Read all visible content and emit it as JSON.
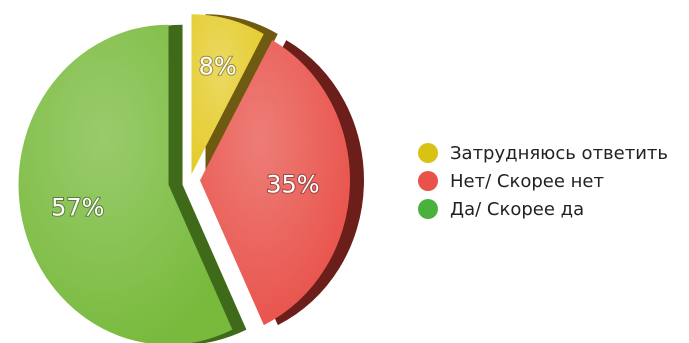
{
  "chart_data": {
    "type": "pie",
    "slices": [
      {
        "label": "Затрудняюсь ответить",
        "value": 8,
        "value_label": "8%",
        "color": "#e4cc2c",
        "side_color": "#6e5a10"
      },
      {
        "label": "Нет/ Скорее нет",
        "value": 35,
        "value_label": "35%",
        "color": "#e8524a",
        "side_color": "#6b1e1a"
      },
      {
        "label": "Да/ Скорее да",
        "value": 57,
        "value_label": "57%",
        "color": "#78ba3c",
        "side_color": "#3e6a1a"
      }
    ],
    "legend": {
      "position": "right",
      "items": [
        {
          "label": "Затрудняюсь ответить",
          "color": "#d8c214"
        },
        {
          "label": "Нет/ Скорее нет",
          "color": "#e8524a"
        },
        {
          "label": "Да/ Скорее да",
          "color": "#4ab23c"
        }
      ]
    }
  }
}
